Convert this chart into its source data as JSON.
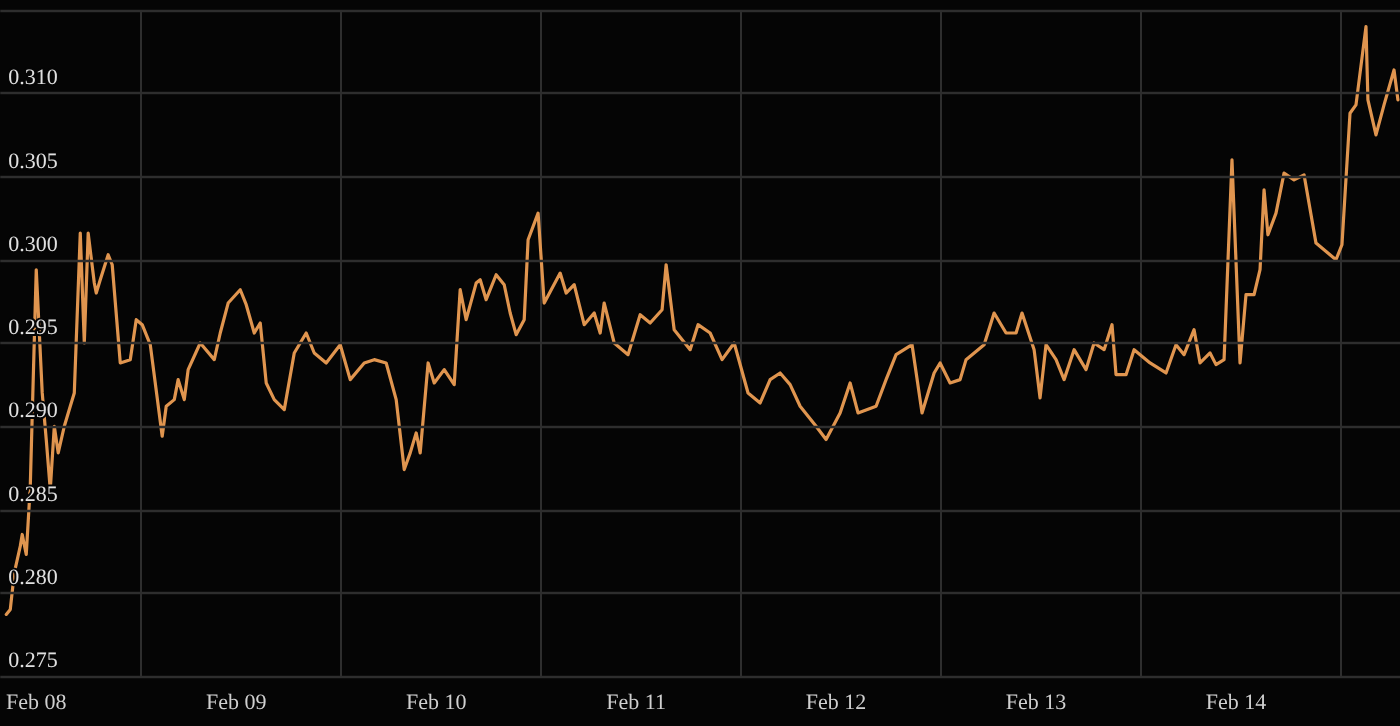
{
  "chart_data": {
    "type": "line",
    "grid": true,
    "marker": "none",
    "line_style": "solid",
    "xlim": [
      "--02-07T19:41",
      "--02-14T19:41"
    ],
    "xticks": [
      {
        "value": "--02-08T00:00",
        "label": "Feb 08"
      },
      {
        "value": "--02-09T00:00",
        "label": "Feb 09"
      },
      {
        "value": "--02-10T00:00",
        "label": "Feb 10"
      },
      {
        "value": "--02-11T00:00",
        "label": "Feb 11"
      },
      {
        "value": "--02-12T00:00",
        "label": "Feb 12"
      },
      {
        "value": "--02-13T00:00",
        "label": "Feb 13"
      },
      {
        "value": "--02-14T00:00",
        "label": "Feb 14"
      },
      {
        "value": "--02-08T12:30",
        "label": null
      },
      {
        "value": "--02-09T12:30",
        "label": null
      },
      {
        "value": "--02-10T12:30",
        "label": null
      },
      {
        "value": "--02-11T12:30",
        "label": null
      },
      {
        "value": "--02-12T12:30",
        "label": null
      },
      {
        "value": "--02-13T12:30",
        "label": null
      },
      {
        "value": "--02-14T12:30",
        "label": null
      }
    ],
    "ylim": [
      0.275,
      0.315
    ],
    "yticks": [
      0.275,
      {
        "value": 0.28,
        "label": "0.280"
      },
      0.285,
      {
        "value": 0.29,
        "label": "0.290"
      },
      0.295,
      {
        "value": 0.3,
        "label": "0.300"
      },
      0.305,
      {
        "value": 0.31,
        "label": "0.310"
      },
      {
        "value": 0.315,
        "label": null
      }
    ],
    "series": [
      {
        "color": "#e0954f",
        "x": [
          "--02-07T20:24",
          "--02-07T20:53",
          "--02-07T21:22",
          "--02-07T22:05",
          "--02-07T22:19",
          "--02-07T22:48",
          "--02-07T23:17",
          "--02-08T00:00",
          "--02-08T00:43",
          "--02-08T01:12",
          "--02-08T01:41",
          "--02-08T02:10",
          "--02-08T02:38",
          "--02-08T03:22",
          "--02-08T04:05",
          "--02-08T04:34",
          "--02-08T05:17",
          "--02-08T05:46",
          "--02-08T06:14",
          "--02-08T06:58",
          "--02-08T07:12",
          "--02-08T07:41",
          "--02-08T08:38",
          "--02-08T09:07",
          "--02-08T10:05",
          "--02-08T11:17",
          "--02-08T12:00",
          "--02-08T12:43",
          "--02-08T13:41",
          "--02-08T15:07",
          "--02-08T15:36",
          "--02-08T16:34",
          "--02-08T17:02",
          "--02-08T17:46",
          "--02-08T18:14",
          "--02-08T19:41",
          "--02-08T21:22",
          "--02-08T22:05",
          "--02-08T23:02",
          "--02-09T00:29",
          "--02-09T01:12",
          "--02-09T02:10",
          "--02-09T02:53",
          "--02-09T03:36",
          "--02-09T04:34",
          "--02-09T05:46",
          "--02-09T06:58",
          "--02-09T08:24",
          "--02-09T09:22",
          "--02-09T10:48",
          "--02-09T12:29",
          "--02-09T13:41",
          "--02-09T15:22",
          "--02-09T16:34",
          "--02-09T18:00",
          "--02-09T19:12",
          "--02-09T20:10",
          "--02-09T20:53",
          "--02-09T21:36",
          "--02-09T22:05",
          "--02-09T23:02",
          "--02-09T23:46",
          "--02-10T00:58",
          "--02-10T02:10",
          "--02-10T02:53",
          "--02-10T03:36",
          "--02-10T04:48",
          "--02-10T05:17",
          "--02-10T06:00",
          "--02-10T07:12",
          "--02-10T08:10",
          "--02-10T08:53",
          "--02-10T09:36",
          "--02-10T10:34",
          "--02-10T11:02",
          "--02-10T12:14",
          "--02-10T12:58",
          "--02-10T14:53",
          "--02-10T15:36",
          "--02-10T16:34",
          "--02-10T17:46",
          "--02-10T18:58",
          "--02-10T19:41",
          "--02-10T20:10",
          "--02-10T21:22",
          "--02-10T23:02",
          "--02-11T00:29",
          "--02-11T01:41",
          "--02-11T03:07",
          "--02-11T03:36",
          "--02-11T04:34",
          "--02-11T06:29",
          "--02-11T07:26",
          "--02-11T08:53",
          "--02-11T10:19",
          "--02-11T11:46",
          "--02-11T13:26",
          "--02-11T14:53",
          "--02-11T16:05",
          "--02-11T17:17",
          "--02-11T18:29",
          "--02-11T19:41",
          "--02-11T21:36",
          "--02-11T22:48",
          "--02-12T00:29",
          "--02-12T01:41",
          "--02-12T02:38",
          "--02-12T04:48",
          "--02-12T06:00",
          "--02-12T07:12",
          "--02-12T09:07",
          "--02-12T10:19",
          "--02-12T11:46",
          "--02-12T12:29",
          "--02-12T13:41",
          "--02-12T14:53",
          "--02-12T15:36",
          "--02-12T17:46",
          "--02-12T18:58",
          "--02-12T20:24",
          "--02-12T21:36",
          "--02-12T22:19",
          "--02-12T23:46",
          "--02-13T00:29",
          "--02-13T01:12",
          "--02-13T02:24",
          "--02-13T03:22",
          "--02-13T04:34",
          "--02-13T06:00",
          "--02-13T06:58",
          "--02-13T08:10",
          "--02-13T09:07",
          "--02-13T09:36",
          "--02-13T10:48",
          "--02-13T11:46",
          "--02-13T13:41",
          "--02-13T15:36",
          "--02-13T16:48",
          "--02-13T17:46",
          "--02-13T18:58",
          "--02-13T19:41",
          "--02-13T20:53",
          "--02-13T21:36",
          "--02-13T22:34",
          "--02-13T23:31",
          "--02-14T00:29",
          "--02-14T01:12",
          "--02-14T02:10",
          "--02-14T02:53",
          "--02-14T03:22",
          "--02-14T03:50",
          "--02-14T04:48",
          "--02-14T05:46",
          "--02-14T06:58",
          "--02-14T08:10",
          "--02-14T09:36",
          "--02-14T12:00",
          "--02-14T12:43",
          "--02-14T13:41",
          "--02-14T14:24",
          "--02-14T15:36",
          "--02-14T15:50",
          "--02-14T16:48",
          "--02-14T17:46",
          "--02-14T18:58",
          "--02-14T19:26"
        ],
        "values": [
          0.2787,
          0.279,
          0.2812,
          0.2828,
          0.2835,
          0.2823,
          0.2864,
          0.2994,
          0.292,
          0.2892,
          0.2862,
          0.29,
          0.2884,
          0.29,
          0.2912,
          0.292,
          0.3016,
          0.295,
          0.3016,
          0.2986,
          0.298,
          0.2988,
          0.3003,
          0.2997,
          0.2938,
          0.294,
          0.2964,
          0.2961,
          0.2949,
          0.2894,
          0.2912,
          0.2916,
          0.2928,
          0.2916,
          0.2934,
          0.295,
          0.294,
          0.2956,
          0.2974,
          0.2982,
          0.2973,
          0.2956,
          0.2962,
          0.2926,
          0.2916,
          0.291,
          0.2944,
          0.2956,
          0.2944,
          0.2938,
          0.2949,
          0.2928,
          0.2938,
          0.294,
          0.2938,
          0.2916,
          0.2874,
          0.2884,
          0.2896,
          0.2884,
          0.2938,
          0.2926,
          0.2934,
          0.2925,
          0.2982,
          0.2964,
          0.2986,
          0.2988,
          0.2976,
          0.2991,
          0.2985,
          0.2968,
          0.2955,
          0.2964,
          0.3012,
          0.3028,
          0.2974,
          0.2992,
          0.298,
          0.2985,
          0.2961,
          0.2968,
          0.2956,
          0.2974,
          0.295,
          0.2943,
          0.2967,
          0.2962,
          0.297,
          0.2997,
          0.2958,
          0.2946,
          0.2961,
          0.2956,
          0.294,
          0.295,
          0.292,
          0.2914,
          0.2928,
          0.2932,
          0.2925,
          0.2912,
          0.29,
          0.2892,
          0.2908,
          0.2926,
          0.2908,
          0.2912,
          0.2928,
          0.2943,
          0.2949,
          0.2908,
          0.2932,
          0.2938,
          0.2926,
          0.2928,
          0.294,
          0.2949,
          0.2968,
          0.2956,
          0.2956,
          0.2968,
          0.2946,
          0.2917,
          0.2949,
          0.294,
          0.2928,
          0.2946,
          0.2934,
          0.295,
          0.2946,
          0.2961,
          0.2931,
          0.2931,
          0.2946,
          0.2938,
          0.2932,
          0.2949,
          0.2943,
          0.2958,
          0.2938,
          0.2944,
          0.2937,
          0.294,
          0.306,
          0.2938,
          0.2979,
          0.2979,
          0.2994,
          0.3042,
          0.3015,
          0.3028,
          0.3052,
          0.3048,
          0.3051,
          0.301,
          0.3,
          0.3009,
          0.3088,
          0.3093,
          0.314,
          0.3096,
          0.3075,
          0.3093,
          0.3114,
          0.3096
        ]
      }
    ]
  }
}
